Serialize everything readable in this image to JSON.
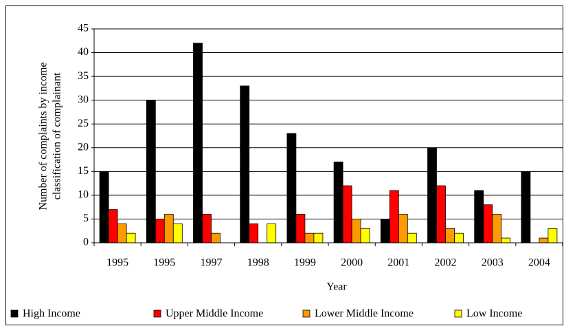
{
  "chart_data": {
    "type": "bar",
    "categories": [
      "1995",
      "1995",
      "1997",
      "1998",
      "1999",
      "2000",
      "2001",
      "2002",
      "2003",
      "2004"
    ],
    "series": [
      {
        "name": "High Income",
        "color": "#000000",
        "values": [
          15,
          30,
          42,
          33,
          23,
          17,
          5,
          20,
          11,
          15
        ]
      },
      {
        "name": "Upper Middle Income",
        "color": "#ff0000",
        "values": [
          7,
          5,
          6,
          4,
          6,
          12,
          11,
          12,
          8,
          0
        ]
      },
      {
        "name": "Lower Middle Income",
        "color": "#ff9900",
        "values": [
          4,
          6,
          2,
          0,
          2,
          5,
          6,
          3,
          6,
          1
        ]
      },
      {
        "name": "Low Income",
        "color": "#ffff00",
        "values": [
          2,
          4,
          0,
          4,
          2,
          3,
          2,
          2,
          1,
          3
        ]
      }
    ],
    "xlabel": "Year",
    "ylabel": [
      "Number of complaints by income",
      "classification of complainant"
    ],
    "ylim": [
      0,
      45
    ],
    "yticks": [
      0,
      5,
      10,
      15,
      20,
      25,
      30,
      35,
      40,
      45
    ],
    "grid": true,
    "legend": "bottom"
  }
}
